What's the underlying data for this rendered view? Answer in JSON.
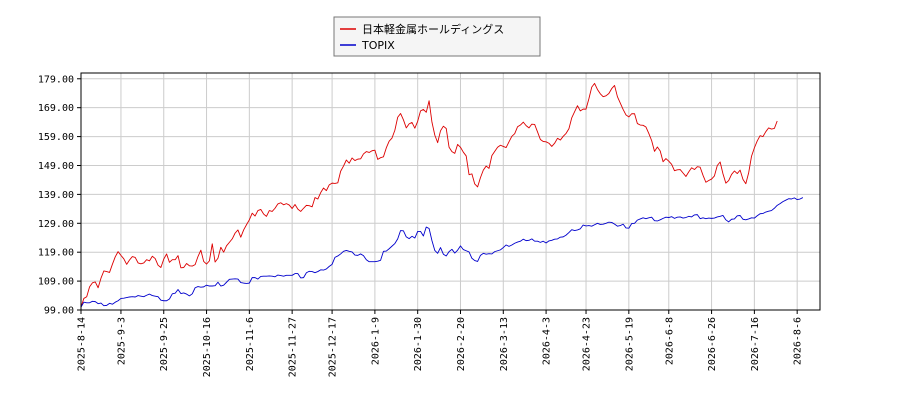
{
  "chart_data": {
    "type": "line",
    "legend_position": "top-center",
    "grid": true,
    "ylim": [
      99.0,
      181.0
    ],
    "y_ticks": [
      "99.00",
      "109.00",
      "119.00",
      "129.00",
      "139.00",
      "149.00",
      "159.00",
      "169.00",
      "179.00"
    ],
    "x_ticks": [
      "2025-8-14",
      "2025-9-3",
      "2025-9-25",
      "2025-10-16",
      "2025-11-6",
      "2025-11-27",
      "2025-12-17",
      "2026-1-9",
      "2026-1-30",
      "2026-2-20",
      "2026-3-13",
      "2026-4-3",
      "2026-4-23",
      "2026-5-19",
      "2026-6-8",
      "2026-6-26",
      "2026-7-16",
      "2026-8-6"
    ],
    "x_tick_index": [
      0,
      14,
      29,
      44,
      59,
      74,
      88,
      103,
      118,
      133,
      148,
      163,
      177,
      192,
      206,
      221,
      236,
      251
    ],
    "n_points": 260,
    "series": [
      {
        "name": "日本軽金属ホールディングス",
        "color": "#dd0000",
        "values": [
          100.0,
          103.0,
          103.6,
          107.0,
          108.4,
          108.7,
          106.7,
          110.0,
          112.5,
          112.3,
          112.0,
          114.8,
          117.4,
          119.2,
          117.9,
          116.7,
          114.8,
          116.3,
          117.5,
          117.2,
          115.3,
          115.0,
          115.3,
          116.4,
          116.0,
          117.6,
          116.8,
          114.5,
          113.7,
          116.6,
          118.4,
          115.5,
          116.4,
          116.4,
          117.8,
          113.6,
          113.7,
          115.1,
          114.3,
          114.2,
          114.7,
          117.5,
          119.7,
          115.8,
          114.9,
          116.0,
          121.9,
          115.6,
          116.9,
          120.7,
          119.0,
          121.2,
          122.4,
          123.6,
          125.6,
          126.7,
          124.2,
          126.7,
          128.5,
          130.2,
          132.5,
          131.5,
          133.4,
          133.8,
          132.2,
          131.4,
          133.4,
          133.1,
          134.2,
          135.7,
          136.1,
          135.4,
          135.8,
          135.3,
          134.1,
          135.5,
          133.9,
          133.1,
          134.2,
          135.2,
          135.1,
          134.7,
          137.9,
          137.4,
          139.6,
          141.2,
          140.3,
          142.3,
          142.9,
          142.8,
          143.0,
          147.0,
          148.8,
          150.9,
          149.8,
          151.6,
          150.7,
          151.2,
          151.3,
          153.0,
          153.8,
          153.5,
          154.1,
          154.3,
          151.1,
          151.7,
          152.0,
          155.1,
          157.4,
          158.5,
          161.2,
          165.7,
          167.0,
          164.8,
          162.0,
          163.4,
          163.9,
          161.9,
          164.3,
          167.9,
          168.4,
          167.4,
          171.4,
          164.0,
          159.5,
          156.9,
          161.0,
          162.6,
          161.8,
          155.3,
          153.8,
          153.2,
          156.3,
          155.3,
          153.6,
          152.3,
          145.8,
          146.1,
          142.6,
          141.6,
          144.8,
          147.4,
          148.8,
          148.0,
          152.4,
          153.9,
          155.3,
          156.0,
          155.6,
          155.2,
          157.2,
          159.1,
          160.0,
          162.4,
          163.0,
          164.0,
          162.8,
          162.0,
          163.3,
          163.2,
          160.6,
          158.0,
          157.3,
          157.2,
          156.7,
          155.6,
          156.7,
          158.4,
          157.8,
          159.1,
          160.1,
          161.7,
          165.5,
          167.6,
          169.7,
          167.9,
          168.5,
          168.5,
          172.1,
          176.1,
          177.4,
          175.3,
          173.8,
          172.8,
          173.1,
          173.9,
          175.6,
          176.7,
          172.8,
          170.6,
          168.4,
          166.5,
          165.8,
          166.9,
          166.9,
          163.5,
          163.0,
          162.9,
          162.3,
          160.1,
          157.6,
          153.9,
          155.4,
          154.0,
          150.3,
          151.4,
          150.5,
          149.4,
          147.2,
          147.5,
          147.6,
          146.4,
          145.2,
          146.8,
          148.2,
          147.6,
          148.6,
          148.4,
          145.6,
          143.2,
          143.8,
          144.3,
          145.4,
          149.0,
          150.2,
          146.1,
          142.9,
          143.8,
          145.9,
          147.1,
          146.2,
          147.4,
          144.2,
          142.7,
          146.5,
          152.2,
          155.1,
          157.5,
          159.3,
          159.0,
          160.7,
          162.0,
          161.6,
          161.8,
          164.4
        ]
      },
      {
        "name": "TOPIX",
        "color": "#0000cc",
        "values": [
          100.0,
          101.7,
          101.5,
          101.5,
          102.0,
          101.9,
          101.2,
          101.4,
          100.5,
          100.6,
          101.3,
          101.0,
          101.7,
          102.2,
          103.0,
          103.1,
          103.3,
          103.5,
          103.6,
          103.5,
          104.0,
          103.8,
          103.6,
          104.1,
          104.5,
          104.0,
          103.8,
          103.6,
          102.4,
          102.2,
          102.2,
          102.8,
          104.6,
          104.8,
          106.1,
          104.7,
          104.9,
          104.5,
          103.9,
          104.6,
          106.7,
          107.1,
          106.9,
          107.0,
          107.6,
          107.3,
          107.3,
          107.4,
          108.6,
          107.3,
          107.6,
          108.6,
          109.6,
          109.7,
          109.8,
          109.7,
          108.5,
          108.3,
          108.2,
          108.3,
          110.2,
          110.2,
          109.7,
          110.6,
          110.7,
          110.7,
          110.8,
          110.7,
          110.5,
          111.1,
          110.9,
          110.7,
          111.0,
          111.0,
          111.0,
          111.6,
          111.6,
          110.1,
          110.2,
          111.9,
          112.4,
          112.3,
          111.9,
          112.3,
          112.9,
          112.8,
          113.2,
          114.1,
          114.8,
          117.2,
          117.7,
          118.4,
          119.3,
          119.6,
          119.3,
          119.1,
          118.0,
          117.9,
          118.4,
          117.8,
          116.4,
          115.7,
          115.7,
          115.7,
          115.9,
          116.2,
          119.3,
          119.4,
          120.2,
          121.1,
          122.0,
          123.6,
          126.5,
          126.4,
          124.3,
          123.7,
          124.5,
          123.9,
          126.2,
          126.2,
          124.6,
          127.7,
          127.2,
          123.0,
          119.6,
          118.6,
          120.6,
          118.3,
          117.7,
          119.2,
          120.0,
          118.7,
          119.7,
          121.2,
          119.9,
          119.5,
          119.1,
          116.9,
          116.1,
          115.8,
          117.9,
          118.6,
          118.3,
          118.5,
          118.4,
          119.2,
          119.5,
          119.8,
          120.6,
          121.5,
          121.0,
          121.5,
          122.1,
          122.5,
          122.8,
          123.5,
          123.0,
          123.1,
          123.6,
          122.8,
          122.8,
          122.4,
          122.8,
          122.2,
          122.9,
          123.1,
          123.5,
          123.6,
          124.2,
          124.3,
          124.9,
          125.8,
          126.8,
          126.5,
          126.7,
          127.1,
          128.4,
          128.1,
          128.2,
          128.0,
          128.5,
          129.0,
          128.6,
          128.7,
          129.0,
          129.4,
          129.3,
          128.7,
          128.0,
          128.2,
          128.7,
          127.4,
          127.3,
          128.9,
          129.0,
          130.1,
          130.5,
          130.9,
          130.6,
          130.9,
          131.1,
          129.9,
          129.8,
          130.2,
          130.7,
          131.1,
          131.0,
          131.3,
          130.7,
          131.1,
          131.2,
          130.8,
          131.0,
          131.4,
          131.2,
          131.9,
          132.0,
          130.6,
          130.9,
          130.6,
          130.8,
          130.7,
          130.8,
          131.2,
          131.4,
          131.7,
          130.2,
          129.5,
          130.4,
          130.5,
          131.6,
          131.7,
          130.4,
          130.2,
          130.5,
          130.9,
          130.8,
          131.6,
          132.3,
          132.4,
          132.9,
          133.2,
          133.4,
          134.2,
          135.2,
          135.8,
          136.5,
          137.0,
          137.5,
          137.4,
          137.8,
          137.2,
          137.4,
          137.9
        ]
      }
    ]
  }
}
